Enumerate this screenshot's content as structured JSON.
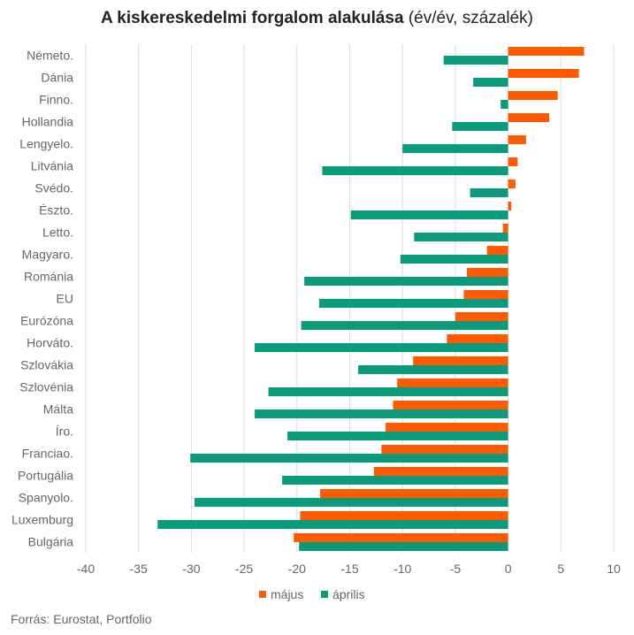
{
  "title_main": "A kiskereskedelmi forgalom alakulása",
  "title_suffix": " (év/év, százalék)",
  "source": "Forrás: Eurostat, Portfolio",
  "colors": {
    "majus": "#ff5a00",
    "aprilis": "#0a9b7c",
    "grid": "#dddddd",
    "text": "#666666"
  },
  "chart_data": {
    "type": "bar",
    "orientation": "horizontal",
    "title": "A kiskereskedelmi forgalom alakulása (év/év, százalék)",
    "categories": [
      "Németo.",
      "Dánia",
      "Finno.",
      "Hollandia",
      "Lengyelo.",
      "Litvánia",
      "Svédo.",
      "Észto.",
      "Letto.",
      "Magyaro.",
      "Románia",
      "EU",
      "Eurózóna",
      "Horváto.",
      "Szlovákia",
      "Szlovénia",
      "Málta",
      "Íro.",
      "Franciao.",
      "Portugália",
      "Spanyolo.",
      "Luxemburg",
      "Bulgária"
    ],
    "series": [
      {
        "name": "május",
        "color": "#ff5a00",
        "values": [
          7.2,
          6.7,
          4.7,
          3.9,
          1.7,
          0.9,
          0.7,
          0.3,
          -0.5,
          -2.0,
          -3.9,
          -4.2,
          -5.0,
          -5.8,
          -9.0,
          -10.5,
          -10.9,
          -11.6,
          -12.0,
          -12.7,
          -17.8,
          -19.7,
          -20.3
        ]
      },
      {
        "name": "április",
        "color": "#0a9b7c",
        "values": [
          -6.1,
          -3.3,
          -0.7,
          -5.3,
          -10.0,
          -17.6,
          -3.6,
          -14.9,
          -8.9,
          -10.2,
          -19.3,
          -17.9,
          -19.6,
          -24.0,
          -14.2,
          -22.7,
          -24.0,
          -20.9,
          -30.1,
          -21.4,
          -29.7,
          -33.2,
          -19.8
        ]
      }
    ],
    "xlim": [
      -40,
      10
    ],
    "xticks": [
      -40,
      -35,
      -30,
      -25,
      -20,
      -15,
      -10,
      -5,
      0,
      5,
      10
    ],
    "grid": "vertical",
    "legend": "bottom-center"
  }
}
